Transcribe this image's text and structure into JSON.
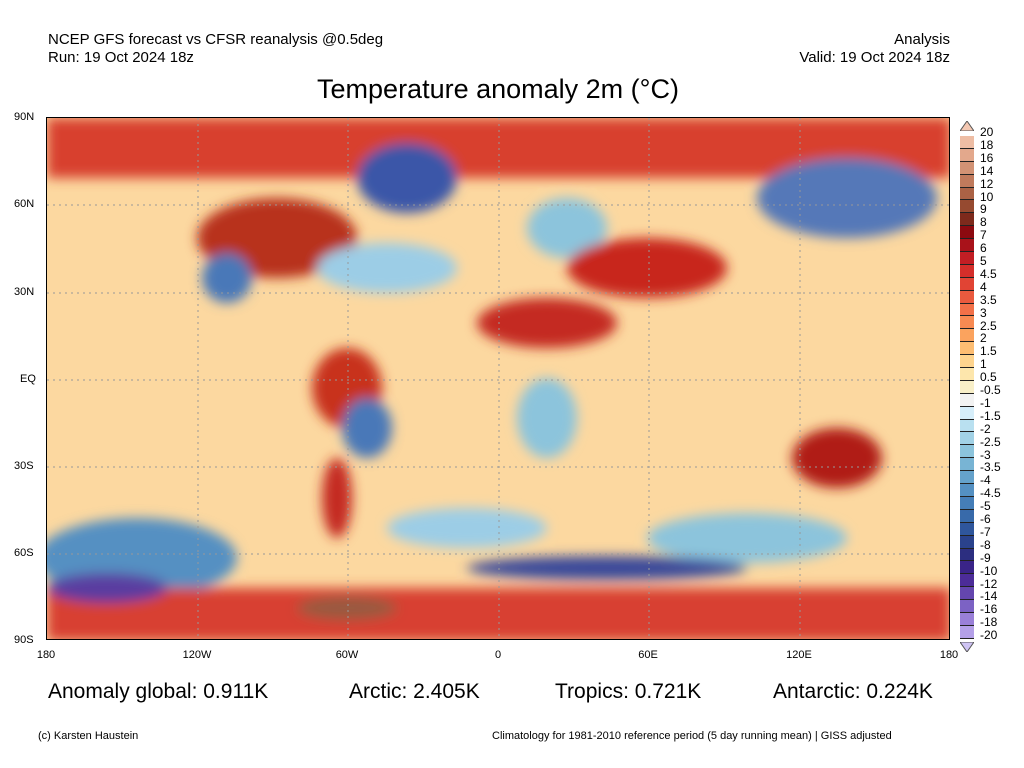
{
  "header": {
    "line1": "NCEP GFS forecast vs CFSR reanalysis @0.5deg",
    "line2": "Run: 19 Oct 2024 18z",
    "right1": "Analysis",
    "right2": "Valid: 19 Oct 2024 18z"
  },
  "title": "Temperature anomaly 2m (°C)",
  "lat_labels": [
    "90N",
    "60N",
    "30N",
    "EQ",
    "30S",
    "60S",
    "90S"
  ],
  "lon_labels": [
    "180",
    "120W",
    "60W",
    "0",
    "60E",
    "120E",
    "180"
  ],
  "stats": {
    "global": "Anomaly global: 0.911K",
    "arctic": "Arctic: 2.405K",
    "tropics": "Tropics: 0.721K",
    "antarctic": "Antarctic: 0.224K"
  },
  "footer": {
    "left": "(c) Karsten Haustein",
    "right": "Climatology for 1981-2010 reference period (5 day running mean) | GISS adjusted"
  },
  "colorbar": {
    "arrow_top_color": "#f4c8b2",
    "arrow_bottom_color": "#cfc4f4",
    "boxes": [
      {
        "label": "20",
        "color": "#eebda4"
      },
      {
        "label": "18",
        "color": "#e3a88c"
      },
      {
        "label": "16",
        "color": "#d29274"
      },
      {
        "label": "14",
        "color": "#c07a5c"
      },
      {
        "label": "12",
        "color": "#ab6245"
      },
      {
        "label": "10",
        "color": "#964a30"
      },
      {
        "label": "9",
        "color": "#7d2a1c"
      },
      {
        "label": "8",
        "color": "#8c0a10"
      },
      {
        "label": "7",
        "color": "#a9121a"
      },
      {
        "label": "6",
        "color": "#c21e24"
      },
      {
        "label": "5",
        "color": "#d42e2a"
      },
      {
        "label": "4.5",
        "color": "#e14434"
      },
      {
        "label": "4",
        "color": "#ea5a3e"
      },
      {
        "label": "3.5",
        "color": "#f27048"
      },
      {
        "label": "3",
        "color": "#f88a52"
      },
      {
        "label": "2.5",
        "color": "#fba35e"
      },
      {
        "label": "2",
        "color": "#fdbd72"
      },
      {
        "label": "1.5",
        "color": "#fed48e"
      },
      {
        "label": "1",
        "color": "#fde6ac"
      },
      {
        "label": "0.5",
        "color": "#f8efc8"
      },
      {
        "label": "-0.5",
        "color": "#f2f2f2"
      },
      {
        "label": "-1",
        "color": "#d6eefa"
      },
      {
        "label": "-1.5",
        "color": "#b9e0f0"
      },
      {
        "label": "-2",
        "color": "#a2d2e6"
      },
      {
        "label": "-2.5",
        "color": "#8cc4dc"
      },
      {
        "label": "-3",
        "color": "#78b4d4"
      },
      {
        "label": "-3.5",
        "color": "#65a2cb"
      },
      {
        "label": "-4",
        "color": "#5490c2"
      },
      {
        "label": "-4.5",
        "color": "#457eb8"
      },
      {
        "label": "-5",
        "color": "#386aaa"
      },
      {
        "label": "-6",
        "color": "#2f569c"
      },
      {
        "label": "-7",
        "color": "#2a428c"
      },
      {
        "label": "-8",
        "color": "#2c2e80"
      },
      {
        "label": "-9",
        "color": "#3a2488"
      },
      {
        "label": "-10",
        "color": "#4c2c98"
      },
      {
        "label": "-12",
        "color": "#6446ae"
      },
      {
        "label": "-14",
        "color": "#7c62c4"
      },
      {
        "label": "-16",
        "color": "#9a80d8"
      },
      {
        "label": "-18",
        "color": "#b4a0e8"
      },
      {
        "label": "-20",
        "color": "#c8bcf2"
      }
    ]
  }
}
